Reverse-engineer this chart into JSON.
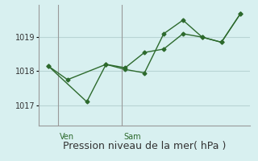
{
  "line1_x": [
    0,
    1,
    3,
    4,
    5,
    6,
    7,
    8,
    9,
    10
  ],
  "line1_y": [
    1018.15,
    1017.75,
    1018.2,
    1018.05,
    1017.95,
    1019.1,
    1019.5,
    1019.0,
    1018.85,
    1019.7
  ],
  "line2_x": [
    0,
    2,
    3,
    4,
    5,
    6,
    7,
    8,
    9,
    10
  ],
  "line2_y": [
    1018.15,
    1017.1,
    1018.2,
    1018.1,
    1018.55,
    1018.65,
    1019.1,
    1019.0,
    1018.85,
    1019.7
  ],
  "line_color": "#2d6a2d",
  "background_color": "#d8f0f0",
  "grid_color": "#b8d4d4",
  "yticks": [
    1017,
    1018,
    1019
  ],
  "ylim": [
    1016.4,
    1019.95
  ],
  "xlim": [
    -0.5,
    10.5
  ],
  "ven_x": 0.5,
  "sam_x": 3.8,
  "xlabel": "Pression niveau de la mer( hPa )",
  "xlabel_fontsize": 9,
  "tick_fontsize": 7,
  "day_fontsize": 7
}
